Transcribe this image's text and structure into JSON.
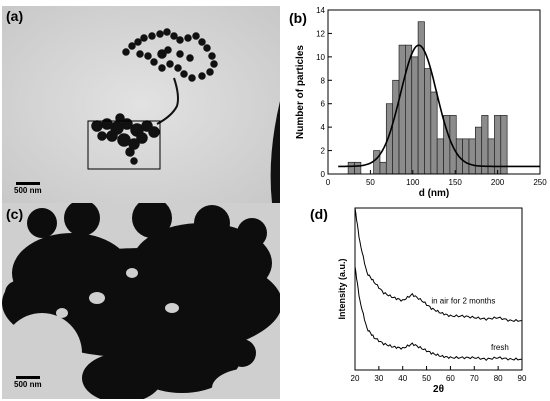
{
  "panels": {
    "a": {
      "label": "(a)",
      "scale": "500 nm"
    },
    "b": {
      "label": "(b)"
    },
    "c": {
      "label": "(c)",
      "scale": "500 nm"
    },
    "d": {
      "label": "(d)"
    }
  },
  "chart_data": [
    {
      "type": "bar",
      "panel": "b",
      "xlabel": "d (nm)",
      "ylabel": "Number of particles",
      "xlim": [
        0,
        250
      ],
      "ylim": [
        0,
        14
      ],
      "xticks": [
        0,
        50,
        100,
        150,
        200,
        250
      ],
      "yticks": [
        0,
        2,
        4,
        6,
        8,
        10,
        12,
        14
      ],
      "bin_width": 7.5,
      "bins": [
        {
          "x": 27.5,
          "y": 1
        },
        {
          "x": 35,
          "y": 1
        },
        {
          "x": 57.5,
          "y": 2
        },
        {
          "x": 65,
          "y": 1
        },
        {
          "x": 72.5,
          "y": 6
        },
        {
          "x": 80,
          "y": 8
        },
        {
          "x": 87.5,
          "y": 11
        },
        {
          "x": 95,
          "y": 11
        },
        {
          "x": 102.5,
          "y": 10
        },
        {
          "x": 110,
          "y": 13
        },
        {
          "x": 117.5,
          "y": 9
        },
        {
          "x": 125,
          "y": 7
        },
        {
          "x": 132.5,
          "y": 3
        },
        {
          "x": 140,
          "y": 5
        },
        {
          "x": 147.5,
          "y": 5
        },
        {
          "x": 155,
          "y": 3
        },
        {
          "x": 162.5,
          "y": 3
        },
        {
          "x": 170,
          "y": 3
        },
        {
          "x": 177.5,
          "y": 4
        },
        {
          "x": 185,
          "y": 5
        },
        {
          "x": 192.5,
          "y": 3
        },
        {
          "x": 200,
          "y": 5
        },
        {
          "x": 207.5,
          "y": 5
        }
      ],
      "fit": {
        "baseline": 0.65,
        "peak_x": 107,
        "peak_y": 11,
        "width": 30
      }
    },
    {
      "type": "line",
      "panel": "d",
      "xlabel": "2θ",
      "ylabel": "Intensity (a.u.)",
      "xlim": [
        20,
        90
      ],
      "xticks": [
        20,
        30,
        40,
        50,
        60,
        70,
        80,
        90
      ],
      "series": [
        {
          "name": "in air for 2 months",
          "x": [
            20,
            22,
            25,
            28,
            32,
            36,
            40,
            44,
            48,
            52,
            56,
            60,
            65,
            70,
            75,
            80,
            85,
            90
          ],
          "y": [
            100,
            78,
            58,
            52,
            45,
            42,
            40,
            44,
            40,
            35,
            32,
            30,
            30,
            29,
            28,
            29,
            27,
            27
          ]
        },
        {
          "name": "fresh",
          "x": [
            20,
            22,
            25,
            28,
            32,
            36,
            40,
            44,
            48,
            52,
            56,
            60,
            65,
            70,
            75,
            80,
            85,
            90
          ],
          "y": [
            62,
            40,
            22,
            16,
            12,
            10,
            9,
            12,
            9,
            6,
            4,
            3,
            3,
            3,
            2,
            3,
            2,
            2
          ]
        }
      ]
    }
  ]
}
